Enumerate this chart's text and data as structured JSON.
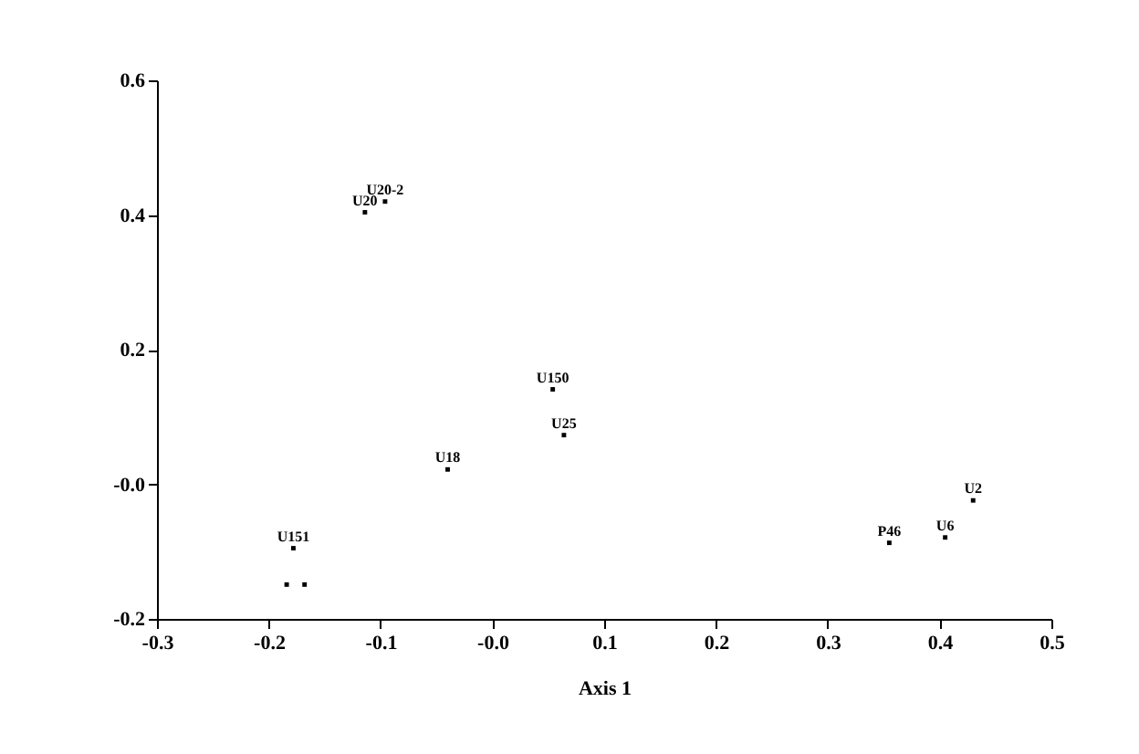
{
  "chart_data": {
    "type": "scatter",
    "xlabel": "Axis 1",
    "marker": "square",
    "grid": false,
    "xlim": [
      -0.3,
      0.5
    ],
    "xticks": [
      -0.3,
      -0.2,
      -0.1,
      {
        "value": 0,
        "label": "-0.0"
      },
      0.1,
      0.2,
      0.3,
      0.4,
      0.5
    ],
    "ylim": [
      -0.2,
      0.6
    ],
    "yticks": [
      -0.2,
      {
        "value": 0,
        "label": "-0.0"
      },
      0.2,
      0.4,
      0.6
    ],
    "series": [
      {
        "color": "#000000",
        "x": [
          -0.096,
          -0.114,
          0.054,
          0.064,
          -0.04,
          -0.178,
          -0.184,
          -0.168,
          0.43,
          0.405,
          0.355
        ],
        "values": [
          0.42,
          0.404,
          0.141,
          0.073,
          0.022,
          -0.095,
          -0.149,
          -0.149,
          -0.024,
          -0.079,
          -0.087
        ],
        "value_labels": [
          "U20-2",
          "U20",
          "U150",
          "U25",
          "U18",
          "U151",
          null,
          null,
          "U2",
          "U6",
          "P46"
        ]
      }
    ]
  }
}
